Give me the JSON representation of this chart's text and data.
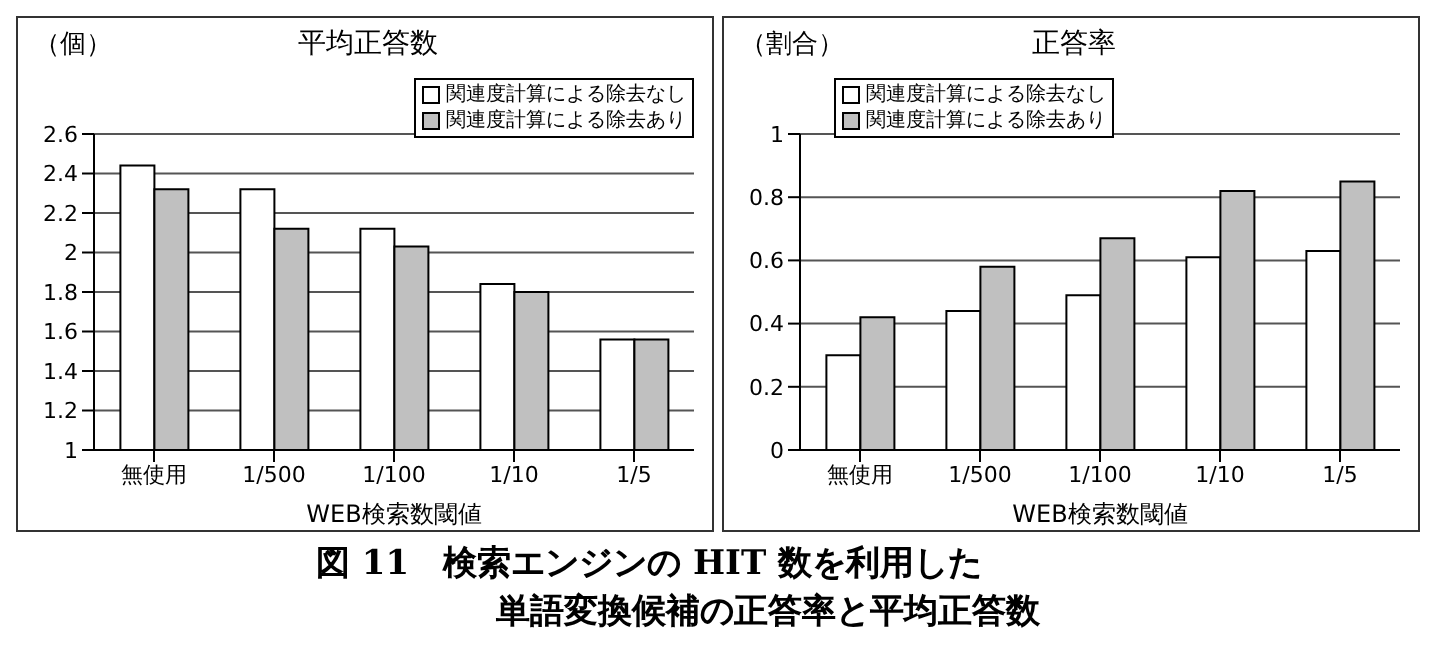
{
  "chart_data": [
    {
      "type": "bar",
      "title": "平均正答数",
      "ylabel": "（個）",
      "xlabel": "WEB検索数閾値",
      "categories": [
        "無使用",
        "1/500",
        "1/100",
        "1/10",
        "1/5"
      ],
      "series": [
        {
          "name": "関連度計算による除去なし",
          "color": "#ffffff",
          "values": [
            2.44,
            2.32,
            2.12,
            1.84,
            1.56
          ]
        },
        {
          "name": "関連度計算による除去あり",
          "color": "#c0c0c0",
          "values": [
            2.32,
            2.12,
            2.03,
            1.8,
            1.56
          ]
        }
      ],
      "ylim": [
        1,
        2.6
      ],
      "yticks": [
        1,
        1.2,
        1.4,
        1.6,
        1.8,
        2,
        2.2,
        2.4,
        2.6
      ],
      "grid": "y",
      "legend": "top right",
      "annotations": [
        "図 11　検索エンジンの HIT 数を利用した",
        "単語変換候補の正答率と平均正答数"
      ]
    },
    {
      "type": "bar",
      "title": "正答率",
      "ylabel": "（割合）",
      "xlabel": "WEB検索数閾値",
      "categories": [
        "無使用",
        "1/500",
        "1/100",
        "1/10",
        "1/5"
      ],
      "series": [
        {
          "name": "関連度計算による除去なし",
          "color": "#ffffff",
          "values": [
            0.3,
            0.44,
            0.49,
            0.61,
            0.63
          ]
        },
        {
          "name": "関連度計算による除去あり",
          "color": "#c0c0c0",
          "values": [
            0.42,
            0.58,
            0.67,
            0.82,
            0.85
          ]
        }
      ],
      "ylim": [
        0,
        1
      ],
      "yticks": [
        0,
        0.2,
        0.4,
        0.6,
        0.8,
        1
      ],
      "grid": "y",
      "legend": "top left"
    }
  ]
}
